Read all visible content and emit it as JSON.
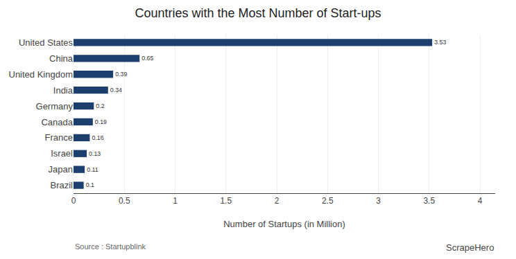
{
  "chart_data": {
    "type": "bar",
    "orientation": "horizontal",
    "title": "Countries with the Most Number of Start-ups",
    "xlabel": "Number of Startups (in Million)",
    "categories": [
      "Brazil",
      "Japan",
      "Israel",
      "France",
      "Canada",
      "Germany",
      "India",
      "United Kingdom",
      "China",
      "United States"
    ],
    "values": [
      0.1,
      0.11,
      0.13,
      0.16,
      0.19,
      0.2,
      0.34,
      0.39,
      0.65,
      3.53
    ],
    "color": "#1c3f6e",
    "data_labels": true,
    "xlim": [
      0,
      4.15
    ],
    "xticks": [
      0,
      0.5,
      1,
      1.5,
      2,
      2.5,
      3,
      3.5,
      4
    ],
    "grid": true,
    "annotations": [
      "Source : Startupblink",
      "ScrapeHero"
    ]
  }
}
